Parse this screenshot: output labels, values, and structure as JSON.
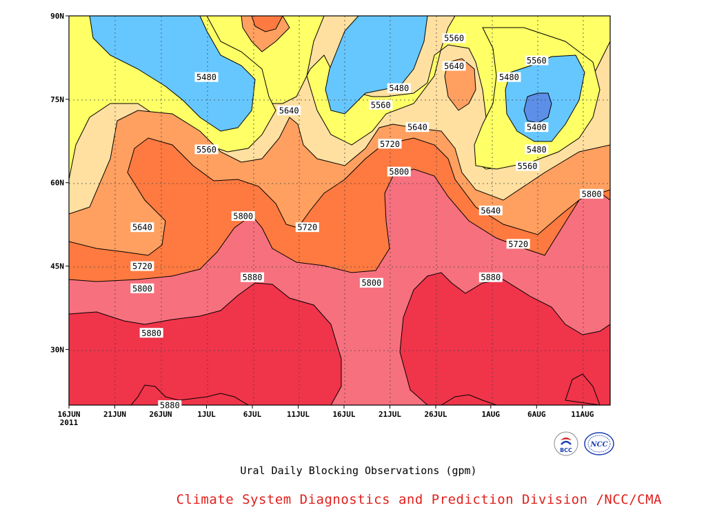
{
  "chart_data": {
    "type": "contour",
    "title": "Ural Daily Blocking Observations (gpm)",
    "x_ticks": [
      "16JUN",
      "21JUN",
      "26JUN",
      "1JUL",
      "6JUL",
      "11JUL",
      "16JUL",
      "21JUL",
      "26JUL",
      "1AUG",
      "6AUG",
      "11AUG"
    ],
    "x_year_label": "2011",
    "y_ticks": [
      "90N",
      "75N",
      "60N",
      "45N",
      "30N"
    ],
    "y_tick_values": [
      90,
      75,
      60,
      45,
      30
    ],
    "ylim": [
      20,
      90
    ],
    "contour_levels": [
      5400,
      5480,
      5560,
      5640,
      5720,
      5800,
      5880
    ],
    "level_colors": {
      "lt5400": "#5b8fe8",
      "5400_5480": "#66c7ff",
      "5480_5560": "#ffff66",
      "5560_5640": "#ffe0a0",
      "5640_5720": "#ffa060",
      "5720_5800": "#ff7a40",
      "5800_5880": "#f7707e",
      "gt5880": "#f0344a"
    },
    "contour_labels": [
      {
        "text": "5560",
        "date": "28JUL",
        "lat": 86
      },
      {
        "text": "5560",
        "date": "6AUG",
        "lat": 82
      },
      {
        "text": "5640",
        "date": "28JUL",
        "lat": 81
      },
      {
        "text": "5480",
        "date": "3AUG",
        "lat": 79
      },
      {
        "text": "5480",
        "date": "1JUL",
        "lat": 79
      },
      {
        "text": "5480",
        "date": "22JUL",
        "lat": 77
      },
      {
        "text": "5560",
        "date": "20JUL",
        "lat": 74
      },
      {
        "text": "5640",
        "date": "10JUL",
        "lat": 73
      },
      {
        "text": "5400",
        "date": "6AUG",
        "lat": 70
      },
      {
        "text": "5640",
        "date": "24JUL",
        "lat": 70
      },
      {
        "text": "5720",
        "date": "21JUL",
        "lat": 67
      },
      {
        "text": "5480",
        "date": "6AUG",
        "lat": 66
      },
      {
        "text": "5560",
        "date": "1JUL",
        "lat": 66
      },
      {
        "text": "5800",
        "date": "22JUL",
        "lat": 62
      },
      {
        "text": "5560",
        "date": "5AUG",
        "lat": 63
      },
      {
        "text": "5800",
        "date": "12AUG",
        "lat": 58
      },
      {
        "text": "5640",
        "date": "1AUG",
        "lat": 55
      },
      {
        "text": "5800",
        "date": "5JUL",
        "lat": 54
      },
      {
        "text": "5720",
        "date": "12JUL",
        "lat": 52
      },
      {
        "text": "5640",
        "date": "24JUN",
        "lat": 52
      },
      {
        "text": "5720",
        "date": "4AUG",
        "lat": 49
      },
      {
        "text": "5720",
        "date": "24JUN",
        "lat": 45
      },
      {
        "text": "5880",
        "date": "6JUL",
        "lat": 43
      },
      {
        "text": "5880",
        "date": "1AUG",
        "lat": 43
      },
      {
        "text": "5800",
        "date": "19JUL",
        "lat": 42
      },
      {
        "text": "5800",
        "date": "24JUN",
        "lat": 41
      },
      {
        "text": "5880",
        "date": "25JUN",
        "lat": 33
      },
      {
        "text": "5880",
        "date": "27JUN",
        "lat": 20
      }
    ]
  },
  "credit": "Climate System Diagnostics and Prediction Division /NCC/CMA",
  "logos": {
    "bcc": {
      "text": "BCC",
      "color": "#1a3fb0"
    },
    "ncc": {
      "text": "NCC",
      "color": "#1a3fb0"
    }
  }
}
